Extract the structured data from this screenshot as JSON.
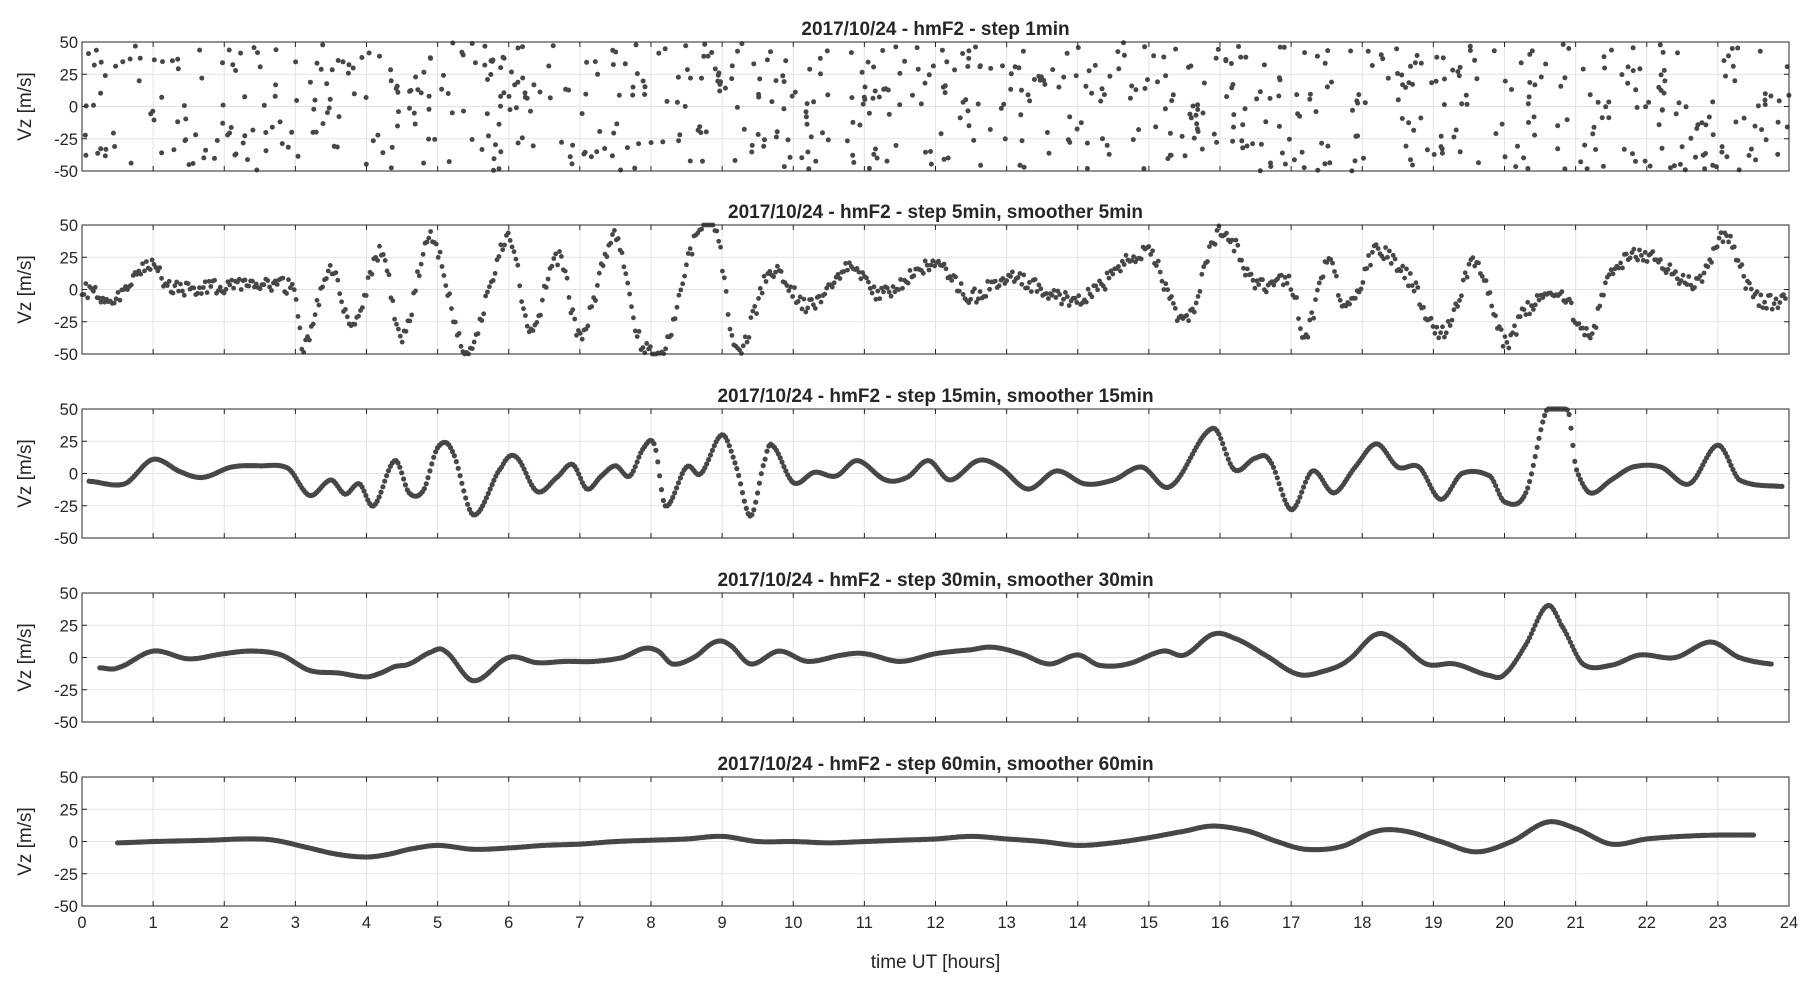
{
  "figure": {
    "xlabel": "time UT [hours]"
  },
  "chart_data": [
    {
      "type": "scatter",
      "title": "2017/10/24 - hmF2 - step  1min",
      "ylabel": "Vz [m/s]",
      "xlim": [
        0,
        24
      ],
      "ylim": [
        -50,
        50
      ],
      "xticks": [
        0,
        1,
        2,
        3,
        4,
        5,
        6,
        7,
        8,
        9,
        10,
        11,
        12,
        13,
        14,
        15,
        16,
        17,
        18,
        19,
        20,
        21,
        22,
        23,
        24
      ],
      "yticks": [
        50,
        25,
        0,
        -25,
        -50
      ],
      "grid": true,
      "marker_color": "#474747",
      "style": "noise",
      "amplitude": 50,
      "x_range": [
        0.0,
        24.0
      ],
      "anchors": [
        [
          0,
          0
        ],
        [
          24,
          0
        ]
      ]
    },
    {
      "type": "scatter",
      "title": "2017/10/24 - hmF2 - step 5min, smoother 5min",
      "ylabel": "Vz [m/s]",
      "xlim": [
        0,
        24
      ],
      "ylim": [
        -50,
        50
      ],
      "xticks": [
        0,
        1,
        2,
        3,
        4,
        5,
        6,
        7,
        8,
        9,
        10,
        11,
        12,
        13,
        14,
        15,
        16,
        17,
        18,
        19,
        20,
        21,
        22,
        23,
        24
      ],
      "yticks": [
        50,
        25,
        0,
        -25,
        -50
      ],
      "grid": true,
      "marker_color": "#474747",
      "style": "jitter",
      "jitter": 6,
      "x_range": [
        0.0,
        23.95
      ],
      "anchors": [
        [
          0,
          0
        ],
        [
          0.5,
          -8
        ],
        [
          1,
          22
        ],
        [
          1.2,
          2
        ],
        [
          2,
          3
        ],
        [
          2.5,
          5
        ],
        [
          3,
          -2
        ],
        [
          3.1,
          -45
        ],
        [
          3.5,
          15
        ],
        [
          3.8,
          -30
        ],
        [
          4.2,
          30
        ],
        [
          4.5,
          -35
        ],
        [
          4.9,
          40
        ],
        [
          5.4,
          -47
        ],
        [
          6,
          40
        ],
        [
          6.3,
          -30
        ],
        [
          6.7,
          25
        ],
        [
          7,
          -35
        ],
        [
          7.5,
          40
        ],
        [
          7.8,
          -35
        ],
        [
          8.2,
          -45
        ],
        [
          8.6,
          35
        ],
        [
          8.9,
          50
        ],
        [
          9.2,
          -45
        ],
        [
          9.7,
          15
        ],
        [
          10.2,
          -12
        ],
        [
          10.8,
          18
        ],
        [
          11.2,
          -3
        ],
        [
          12,
          18
        ],
        [
          12.5,
          -5
        ],
        [
          13,
          10
        ],
        [
          14,
          -8
        ],
        [
          15,
          28
        ],
        [
          15.5,
          -25
        ],
        [
          16,
          45
        ],
        [
          16.5,
          5
        ],
        [
          17,
          5
        ],
        [
          17.2,
          -35
        ],
        [
          17.5,
          20
        ],
        [
          17.8,
          -15
        ],
        [
          18.2,
          30
        ],
        [
          18.7,
          5
        ],
        [
          19.1,
          -35
        ],
        [
          19.6,
          20
        ],
        [
          20,
          -40
        ],
        [
          20.3,
          -15
        ],
        [
          20.8,
          -5
        ],
        [
          21.2,
          -35
        ],
        [
          21.5,
          15
        ],
        [
          22,
          25
        ],
        [
          22.7,
          5
        ],
        [
          23.1,
          40
        ],
        [
          23.5,
          -5
        ],
        [
          23.95,
          -10
        ]
      ]
    },
    {
      "type": "scatter",
      "title": "2017/10/24 - hmF2 - step 15min, smoother 15min",
      "ylabel": "Vz [m/s]",
      "xlim": [
        0,
        24
      ],
      "ylim": [
        -50,
        50
      ],
      "xticks": [
        0,
        1,
        2,
        3,
        4,
        5,
        6,
        7,
        8,
        9,
        10,
        11,
        12,
        13,
        14,
        15,
        16,
        17,
        18,
        19,
        20,
        21,
        22,
        23,
        24
      ],
      "yticks": [
        50,
        25,
        0,
        -25,
        -50
      ],
      "grid": true,
      "marker_color": "#474747",
      "style": "curve",
      "x_range": [
        0.1,
        23.9
      ],
      "anchors": [
        [
          0.1,
          -6
        ],
        [
          0.6,
          -8
        ],
        [
          1,
          11
        ],
        [
          1.4,
          1
        ],
        [
          1.7,
          -3
        ],
        [
          2.1,
          5
        ],
        [
          2.5,
          6
        ],
        [
          2.9,
          4
        ],
        [
          3.2,
          -17
        ],
        [
          3.5,
          -5
        ],
        [
          3.7,
          -16
        ],
        [
          3.9,
          -8
        ],
        [
          4.1,
          -25
        ],
        [
          4.4,
          10
        ],
        [
          4.6,
          -15
        ],
        [
          4.8,
          -13
        ],
        [
          5.0,
          20
        ],
        [
          5.2,
          18
        ],
        [
          5.5,
          -32
        ],
        [
          5.9,
          5
        ],
        [
          6.1,
          13
        ],
        [
          6.4,
          -14
        ],
        [
          6.7,
          -2
        ],
        [
          6.9,
          7
        ],
        [
          7.1,
          -12
        ],
        [
          7.3,
          -2
        ],
        [
          7.5,
          6
        ],
        [
          7.7,
          -2
        ],
        [
          7.9,
          20
        ],
        [
          8.05,
          22
        ],
        [
          8.2,
          -25
        ],
        [
          8.5,
          5
        ],
        [
          8.7,
          0
        ],
        [
          9.0,
          30
        ],
        [
          9.2,
          5
        ],
        [
          9.4,
          -33
        ],
        [
          9.6,
          10
        ],
        [
          9.7,
          22
        ],
        [
          10,
          -7
        ],
        [
          10.3,
          1
        ],
        [
          10.6,
          -2
        ],
        [
          10.9,
          10
        ],
        [
          11.3,
          -5
        ],
        [
          11.6,
          -3
        ],
        [
          11.9,
          10
        ],
        [
          12.2,
          -5
        ],
        [
          12.6,
          10
        ],
        [
          12.9,
          5
        ],
        [
          13.3,
          -12
        ],
        [
          13.7,
          2
        ],
        [
          14.1,
          -8
        ],
        [
          14.5,
          -5
        ],
        [
          14.9,
          5
        ],
        [
          15.3,
          -10
        ],
        [
          15.9,
          35
        ],
        [
          16.2,
          3
        ],
        [
          16.5,
          12
        ],
        [
          16.7,
          10
        ],
        [
          17.0,
          -28
        ],
        [
          17.3,
          2
        ],
        [
          17.6,
          -15
        ],
        [
          17.9,
          5
        ],
        [
          18.2,
          23
        ],
        [
          18.5,
          5
        ],
        [
          18.8,
          5
        ],
        [
          19.1,
          -20
        ],
        [
          19.4,
          0
        ],
        [
          19.8,
          -2
        ],
        [
          20.0,
          -22
        ],
        [
          20.3,
          -15
        ],
        [
          20.6,
          50
        ],
        [
          20.9,
          48
        ],
        [
          21.0,
          5
        ],
        [
          21.2,
          -15
        ],
        [
          21.5,
          -5
        ],
        [
          21.8,
          5
        ],
        [
          22.2,
          5
        ],
        [
          22.6,
          -8
        ],
        [
          23.0,
          22
        ],
        [
          23.3,
          -5
        ],
        [
          23.9,
          -10
        ]
      ]
    },
    {
      "type": "scatter",
      "title": "2017/10/24 - hmF2 - step 30min, smoother 30min",
      "ylabel": "Vz [m/s]",
      "xlim": [
        0,
        24
      ],
      "ylim": [
        -50,
        50
      ],
      "xticks": [
        0,
        1,
        2,
        3,
        4,
        5,
        6,
        7,
        8,
        9,
        10,
        11,
        12,
        13,
        14,
        15,
        16,
        17,
        18,
        19,
        20,
        21,
        22,
        23,
        24
      ],
      "yticks": [
        50,
        25,
        0,
        -25,
        -50
      ],
      "grid": true,
      "marker_color": "#474747",
      "style": "curve",
      "x_range": [
        0.25,
        23.75
      ],
      "anchors": [
        [
          0.25,
          -8
        ],
        [
          0.5,
          -8
        ],
        [
          1.0,
          5
        ],
        [
          1.5,
          -1
        ],
        [
          2.0,
          3
        ],
        [
          2.4,
          5
        ],
        [
          2.8,
          2
        ],
        [
          3.2,
          -10
        ],
        [
          3.6,
          -12
        ],
        [
          4.0,
          -15
        ],
        [
          4.2,
          -12
        ],
        [
          4.4,
          -7
        ],
        [
          4.6,
          -5
        ],
        [
          4.9,
          4
        ],
        [
          5.1,
          5
        ],
        [
          5.5,
          -18
        ],
        [
          6.0,
          0
        ],
        [
          6.4,
          -4
        ],
        [
          6.8,
          -3
        ],
        [
          7.2,
          -3
        ],
        [
          7.6,
          0
        ],
        [
          7.9,
          7
        ],
        [
          8.1,
          5
        ],
        [
          8.3,
          -5
        ],
        [
          8.6,
          0
        ],
        [
          8.9,
          12
        ],
        [
          9.1,
          10
        ],
        [
          9.4,
          -5
        ],
        [
          9.8,
          5
        ],
        [
          10.2,
          -3
        ],
        [
          10.7,
          2
        ],
        [
          11.0,
          3
        ],
        [
          11.5,
          -3
        ],
        [
          12.0,
          3
        ],
        [
          12.5,
          6
        ],
        [
          12.8,
          8
        ],
        [
          13.2,
          3
        ],
        [
          13.6,
          -5
        ],
        [
          14.0,
          2
        ],
        [
          14.3,
          -6
        ],
        [
          14.7,
          -5
        ],
        [
          15.2,
          5
        ],
        [
          15.5,
          2
        ],
        [
          15.9,
          18
        ],
        [
          16.2,
          15
        ],
        [
          16.6,
          3
        ],
        [
          17.1,
          -13
        ],
        [
          17.5,
          -10
        ],
        [
          17.8,
          -2
        ],
        [
          18.2,
          18
        ],
        [
          18.5,
          12
        ],
        [
          18.9,
          -5
        ],
        [
          19.3,
          -5
        ],
        [
          19.8,
          -14
        ],
        [
          20.0,
          -13
        ],
        [
          20.3,
          10
        ],
        [
          20.6,
          40
        ],
        [
          20.8,
          25
        ],
        [
          21.1,
          -5
        ],
        [
          21.5,
          -6
        ],
        [
          21.9,
          2
        ],
        [
          22.4,
          0
        ],
        [
          22.9,
          12
        ],
        [
          23.3,
          0
        ],
        [
          23.75,
          -5
        ]
      ]
    },
    {
      "type": "scatter",
      "title": "2017/10/24 - hmF2 - step 60min, smoother 60min",
      "ylabel": "Vz [m/s]",
      "xlim": [
        0,
        24
      ],
      "ylim": [
        -50,
        50
      ],
      "xticks": [
        0,
        1,
        2,
        3,
        4,
        5,
        6,
        7,
        8,
        9,
        10,
        11,
        12,
        13,
        14,
        15,
        16,
        17,
        18,
        19,
        20,
        21,
        22,
        23,
        24
      ],
      "yticks": [
        50,
        25,
        0,
        -25,
        -50
      ],
      "grid": true,
      "marker_color": "#474747",
      "style": "curve",
      "x_range": [
        0.5,
        23.5
      ],
      "anchors": [
        [
          0.5,
          -1
        ],
        [
          1.0,
          0
        ],
        [
          1.8,
          1
        ],
        [
          2.3,
          2
        ],
        [
          2.7,
          1
        ],
        [
          3.2,
          -5
        ],
        [
          3.6,
          -10
        ],
        [
          4.0,
          -12
        ],
        [
          4.3,
          -10
        ],
        [
          4.6,
          -6
        ],
        [
          5.0,
          -3
        ],
        [
          5.5,
          -6
        ],
        [
          6.0,
          -5
        ],
        [
          6.5,
          -3
        ],
        [
          7.0,
          -2
        ],
        [
          7.5,
          0
        ],
        [
          8.0,
          1
        ],
        [
          8.5,
          2
        ],
        [
          9.0,
          4
        ],
        [
          9.5,
          0
        ],
        [
          10.0,
          0
        ],
        [
          10.5,
          -1
        ],
        [
          11.0,
          0
        ],
        [
          11.5,
          1
        ],
        [
          12.0,
          2
        ],
        [
          12.5,
          4
        ],
        [
          13.0,
          2
        ],
        [
          13.5,
          0
        ],
        [
          14.0,
          -3
        ],
        [
          14.5,
          -1
        ],
        [
          15.0,
          3
        ],
        [
          15.5,
          8
        ],
        [
          15.9,
          12
        ],
        [
          16.4,
          8
        ],
        [
          16.8,
          0
        ],
        [
          17.2,
          -6
        ],
        [
          17.7,
          -4
        ],
        [
          18.2,
          8
        ],
        [
          18.6,
          8
        ],
        [
          19.1,
          0
        ],
        [
          19.6,
          -8
        ],
        [
          20.1,
          0
        ],
        [
          20.6,
          15
        ],
        [
          21.0,
          10
        ],
        [
          21.5,
          -2
        ],
        [
          22.0,
          2
        ],
        [
          22.5,
          4
        ],
        [
          23.0,
          5
        ],
        [
          23.5,
          5
        ]
      ]
    }
  ]
}
